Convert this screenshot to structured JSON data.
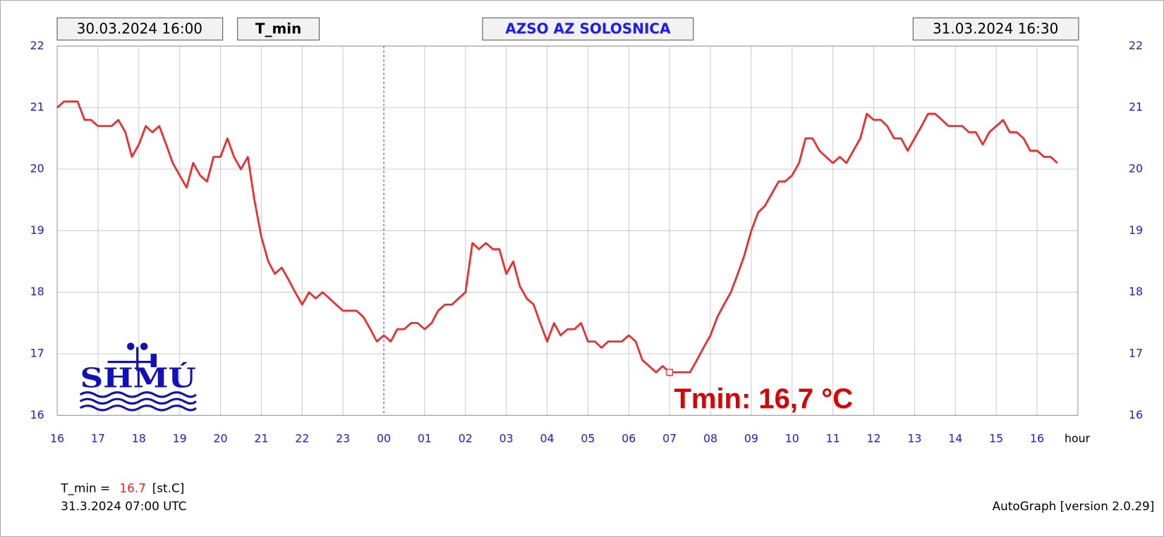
{
  "chart_data": {
    "type": "line",
    "title": "AZSO AZ SOLOSNICA",
    "start_time": "30.03.2024 16:00",
    "variable": "T_min",
    "end_time": "31.03.2024 16:30",
    "x_label": "hour",
    "annotation": "Tmin: 16,7 °C",
    "logo": "SHMÚ",
    "color": "#ff2020",
    "grid": true,
    "xlim": [
      16,
      41
    ],
    "ylim": [
      16,
      22
    ],
    "yticks": [
      16,
      17,
      18,
      19,
      20,
      21,
      22
    ],
    "xticks": [
      16,
      17,
      18,
      19,
      20,
      21,
      22,
      23,
      {
        "value": 24,
        "label": "00"
      },
      {
        "value": 25,
        "label": "01"
      },
      {
        "value": 26,
        "label": "02"
      },
      {
        "value": 27,
        "label": "03"
      },
      {
        "value": 28,
        "label": "04"
      },
      {
        "value": 29,
        "label": "05"
      },
      {
        "value": 30,
        "label": "06"
      },
      {
        "value": 31,
        "label": "07"
      },
      {
        "value": 32,
        "label": "08"
      },
      {
        "value": 33,
        "label": "09"
      },
      {
        "value": 34,
        "label": "10"
      },
      {
        "value": 35,
        "label": "11"
      },
      {
        "value": 36,
        "label": "12"
      },
      {
        "value": 37,
        "label": "13"
      },
      {
        "value": 38,
        "label": "14"
      },
      {
        "value": 39,
        "label": "15"
      },
      {
        "value": 40,
        "label": "16"
      }
    ],
    "x": [
      16,
      16.17,
      16.33,
      16.5,
      16.67,
      16.83,
      17,
      17.17,
      17.33,
      17.5,
      17.67,
      17.83,
      18,
      18.17,
      18.33,
      18.5,
      18.67,
      18.83,
      19,
      19.17,
      19.33,
      19.5,
      19.67,
      19.83,
      20,
      20.17,
      20.33,
      20.5,
      20.67,
      20.83,
      21,
      21.17,
      21.33,
      21.5,
      21.67,
      21.83,
      22,
      22.17,
      22.33,
      22.5,
      22.67,
      22.83,
      23,
      23.17,
      23.33,
      23.5,
      23.67,
      23.83,
      24,
      24.17,
      24.33,
      24.5,
      24.67,
      24.83,
      25,
      25.17,
      25.33,
      25.5,
      25.67,
      25.83,
      26,
      26.17,
      26.33,
      26.5,
      26.67,
      26.83,
      27,
      27.17,
      27.33,
      27.5,
      27.67,
      27.83,
      28,
      28.17,
      28.33,
      28.5,
      28.67,
      28.83,
      29,
      29.17,
      29.33,
      29.5,
      29.67,
      29.83,
      30,
      30.17,
      30.33,
      30.5,
      30.67,
      30.83,
      31,
      31.17,
      31.33,
      31.5,
      31.67,
      31.83,
      32,
      32.17,
      32.33,
      32.5,
      32.67,
      32.83,
      33,
      33.17,
      33.33,
      33.5,
      33.67,
      33.83,
      34,
      34.17,
      34.33,
      34.5,
      34.67,
      34.83,
      35,
      35.17,
      35.33,
      35.5,
      35.67,
      35.83,
      36,
      36.17,
      36.33,
      36.5,
      36.67,
      36.83,
      37,
      37.17,
      37.33,
      37.5,
      37.67,
      37.83,
      38,
      38.17,
      38.33,
      38.5,
      38.67,
      38.83,
      39,
      39.17,
      39.33,
      39.5,
      39.67,
      39.83,
      40,
      40.17,
      40.33,
      40.5
    ],
    "values": [
      21.0,
      21.1,
      21.1,
      21.1,
      20.8,
      20.8,
      20.7,
      20.7,
      20.7,
      20.8,
      20.6,
      20.2,
      20.4,
      20.7,
      20.6,
      20.7,
      20.4,
      20.1,
      19.9,
      19.7,
      20.1,
      19.9,
      19.8,
      20.2,
      20.2,
      20.5,
      20.2,
      20.0,
      20.2,
      19.5,
      18.9,
      18.5,
      18.3,
      18.4,
      18.2,
      18.0,
      17.8,
      18.0,
      17.9,
      18.0,
      17.9,
      17.8,
      17.7,
      17.7,
      17.7,
      17.6,
      17.4,
      17.2,
      17.3,
      17.2,
      17.4,
      17.4,
      17.5,
      17.5,
      17.4,
      17.5,
      17.7,
      17.8,
      17.8,
      17.9,
      18.0,
      18.8,
      18.7,
      18.8,
      18.7,
      18.7,
      18.3,
      18.5,
      18.1,
      17.9,
      17.8,
      17.5,
      17.2,
      17.5,
      17.3,
      17.4,
      17.4,
      17.5,
      17.2,
      17.2,
      17.1,
      17.2,
      17.2,
      17.2,
      17.3,
      17.2,
      16.9,
      16.8,
      16.7,
      16.8,
      16.7,
      16.7,
      16.7,
      16.7,
      16.9,
      17.1,
      17.3,
      17.6,
      17.8,
      18.0,
      18.3,
      18.6,
      19.0,
      19.3,
      19.4,
      19.6,
      19.8,
      19.8,
      19.9,
      20.1,
      20.5,
      20.5,
      20.3,
      20.2,
      20.1,
      20.2,
      20.1,
      20.3,
      20.5,
      20.9,
      20.8,
      20.8,
      20.7,
      20.5,
      20.5,
      20.3,
      20.5,
      20.7,
      20.9,
      20.9,
      20.8,
      20.7,
      20.7,
      20.7,
      20.6,
      20.6,
      20.4,
      20.6,
      20.7,
      20.8,
      20.6,
      20.6,
      20.5,
      20.3,
      20.3,
      20.2,
      20.2,
      20.1
    ],
    "min_point": {
      "x": 31,
      "y": 16.7
    },
    "footer": {
      "label": "T_min =",
      "value": 16.7,
      "unit": "[st.C]",
      "time": "31.3.2024 07:00 UTC",
      "version": "AutoGraph [version 2.0.29]"
    }
  }
}
